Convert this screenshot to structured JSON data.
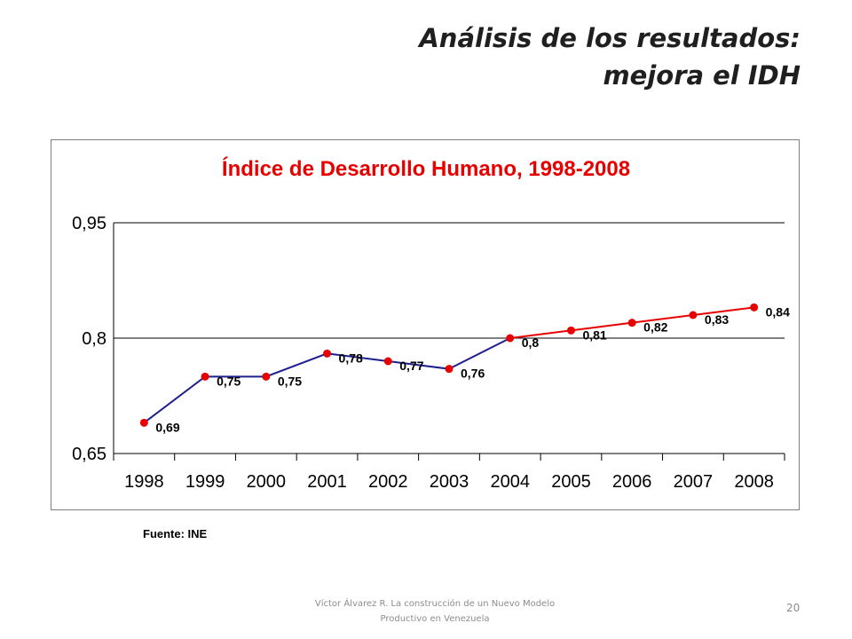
{
  "slide": {
    "title_line1": "Análisis de los resultados:",
    "title_line2": "mejora el IDH",
    "source": "Fuente: INE",
    "footer_line1": "Víctor Álvarez R. La construcción de un Nuevo Modelo",
    "footer_line2": "Productivo en Venezuela",
    "page_number": "20"
  },
  "chart_data": {
    "type": "line",
    "title": "Índice de Desarrollo Humano, 1998-2008",
    "xlabel": "",
    "ylabel": "",
    "categories": [
      "1998",
      "1999",
      "2000",
      "2001",
      "2002",
      "2003",
      "2004",
      "2005",
      "2006",
      "2007",
      "2008"
    ],
    "values": [
      0.69,
      0.75,
      0.75,
      0.78,
      0.77,
      0.76,
      0.8,
      0.81,
      0.82,
      0.83,
      0.84
    ],
    "data_labels": [
      "0,69",
      "0,75",
      "0,75",
      "0,78",
      "0,77",
      "0,76",
      "0,8",
      "0,81",
      "0,82",
      "0,83",
      "0,84"
    ],
    "ylim": [
      0.65,
      0.95
    ],
    "yticks": [
      0.65,
      0.8,
      0.95
    ],
    "ytick_labels": [
      "0,65",
      "0,8",
      "0,95"
    ],
    "grid": true,
    "segments": [
      {
        "from": "1998",
        "to": "2004",
        "color": "#1f1f8f"
      },
      {
        "from": "2004",
        "to": "2008",
        "color": "#e60000"
      }
    ],
    "marker_color": "#e60000",
    "title_color": "#e60000"
  }
}
